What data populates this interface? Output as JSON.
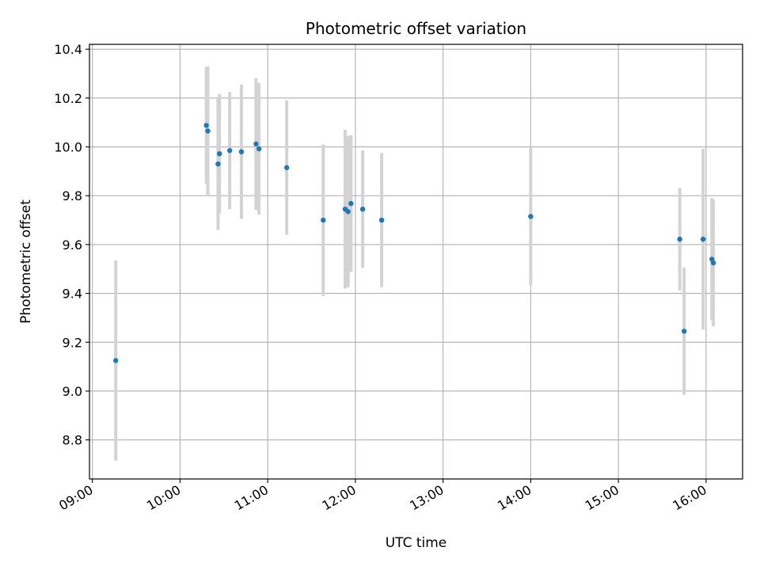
{
  "chart_data": {
    "type": "scatter",
    "title": "Photometric offset variation",
    "xlabel": "UTC time",
    "ylabel": "Photometric offset",
    "x_ticks": [
      "09:00",
      "10:00",
      "11:00",
      "12:00",
      "13:00",
      "14:00",
      "15:00",
      "16:00"
    ],
    "y_ticks": [
      "8.8",
      "9.0",
      "9.2",
      "9.4",
      "9.6",
      "9.8",
      "10.0",
      "10.2",
      "10.4"
    ],
    "xlim": [
      "08:58",
      "16:25"
    ],
    "ylim": [
      8.64,
      10.42
    ],
    "grid": true,
    "marker_color": "#1f77b4",
    "errorbar_color": "#d3d3d3",
    "points": [
      {
        "x": "09:16",
        "y": 9.125,
        "err": 0.41
      },
      {
        "x": "10:18",
        "y": 10.088,
        "err": 0.24
      },
      {
        "x": "10:19",
        "y": 10.065,
        "err": 0.265
      },
      {
        "x": "10:26",
        "y": 9.93,
        "err": 0.27
      },
      {
        "x": "10:27",
        "y": 9.972,
        "err": 0.245
      },
      {
        "x": "10:34",
        "y": 9.985,
        "err": 0.24
      },
      {
        "x": "10:42",
        "y": 9.98,
        "err": 0.275
      },
      {
        "x": "10:52",
        "y": 10.012,
        "err": 0.27
      },
      {
        "x": "10:54",
        "y": 9.992,
        "err": 0.27
      },
      {
        "x": "11:13",
        "y": 9.915,
        "err": 0.275
      },
      {
        "x": "11:38",
        "y": 9.7,
        "err": 0.31
      },
      {
        "x": "11:53",
        "y": 9.745,
        "err": 0.325
      },
      {
        "x": "11:55",
        "y": 9.735,
        "err": 0.31
      },
      {
        "x": "11:57",
        "y": 9.768,
        "err": 0.28
      },
      {
        "x": "12:05",
        "y": 9.745,
        "err": 0.24
      },
      {
        "x": "12:18",
        "y": 9.7,
        "err": 0.275
      },
      {
        "x": "14:00",
        "y": 9.715,
        "err": 0.28
      },
      {
        "x": "15:42",
        "y": 9.622,
        "err": 0.21
      },
      {
        "x": "15:45",
        "y": 9.245,
        "err": 0.26
      },
      {
        "x": "15:58",
        "y": 9.622,
        "err": 0.37
      },
      {
        "x": "16:04",
        "y": 9.54,
        "err": 0.25
      },
      {
        "x": "16:05",
        "y": 9.525,
        "err": 0.26
      }
    ]
  }
}
